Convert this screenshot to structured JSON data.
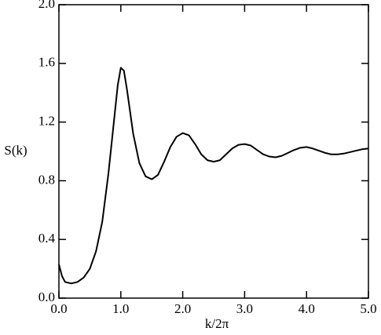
{
  "chart_data": {
    "type": "line",
    "xlabel": "k/2π",
    "ylabel": "S(k)",
    "x": [
      0,
      0.05,
      0.1,
      0.2,
      0.3,
      0.4,
      0.5,
      0.6,
      0.7,
      0.8,
      0.9,
      0.95,
      1.0,
      1.05,
      1.1,
      1.2,
      1.3,
      1.4,
      1.5,
      1.6,
      1.7,
      1.8,
      1.9,
      2.0,
      2.1,
      2.2,
      2.3,
      2.4,
      2.5,
      2.6,
      2.7,
      2.8,
      2.9,
      3.0,
      3.1,
      3.2,
      3.3,
      3.4,
      3.5,
      3.6,
      3.7,
      3.8,
      3.9,
      4.0,
      4.1,
      4.2,
      4.3,
      4.4,
      4.5,
      4.6,
      4.7,
      4.8,
      4.9,
      5.0
    ],
    "series": [
      {
        "color": "#000000",
        "values": [
          0.23,
          0.15,
          0.11,
          0.1,
          0.11,
          0.14,
          0.2,
          0.32,
          0.52,
          0.85,
          1.25,
          1.45,
          1.57,
          1.55,
          1.42,
          1.12,
          0.92,
          0.83,
          0.81,
          0.84,
          0.93,
          1.03,
          1.1,
          1.125,
          1.11,
          1.05,
          0.98,
          0.94,
          0.93,
          0.94,
          0.98,
          1.02,
          1.045,
          1.05,
          1.04,
          1.01,
          0.98,
          0.965,
          0.96,
          0.97,
          0.99,
          1.01,
          1.025,
          1.03,
          1.02,
          1.005,
          0.99,
          0.98,
          0.98,
          0.985,
          0.995,
          1.005,
          1.015,
          1.02
        ]
      }
    ],
    "xlim": [
      0,
      5
    ],
    "xticks": [
      {
        "value": 0,
        "label": "0.0"
      },
      {
        "value": 1,
        "label": "1.0"
      },
      {
        "value": 2,
        "label": "2.0"
      },
      {
        "value": 3,
        "label": "3.0"
      },
      {
        "value": 4,
        "label": "4.0"
      },
      {
        "value": 5,
        "label": "5.0"
      }
    ],
    "ylim": [
      0,
      2
    ],
    "yticks": [
      {
        "value": 0,
        "label": "0.0"
      },
      {
        "value": 0.4,
        "label": "0.4"
      },
      {
        "value": 0.8,
        "label": "0.8"
      },
      {
        "value": 1.2,
        "label": "1.2"
      },
      {
        "value": 1.6,
        "label": "1.6"
      },
      {
        "value": 2,
        "label": "2.0"
      }
    ]
  }
}
